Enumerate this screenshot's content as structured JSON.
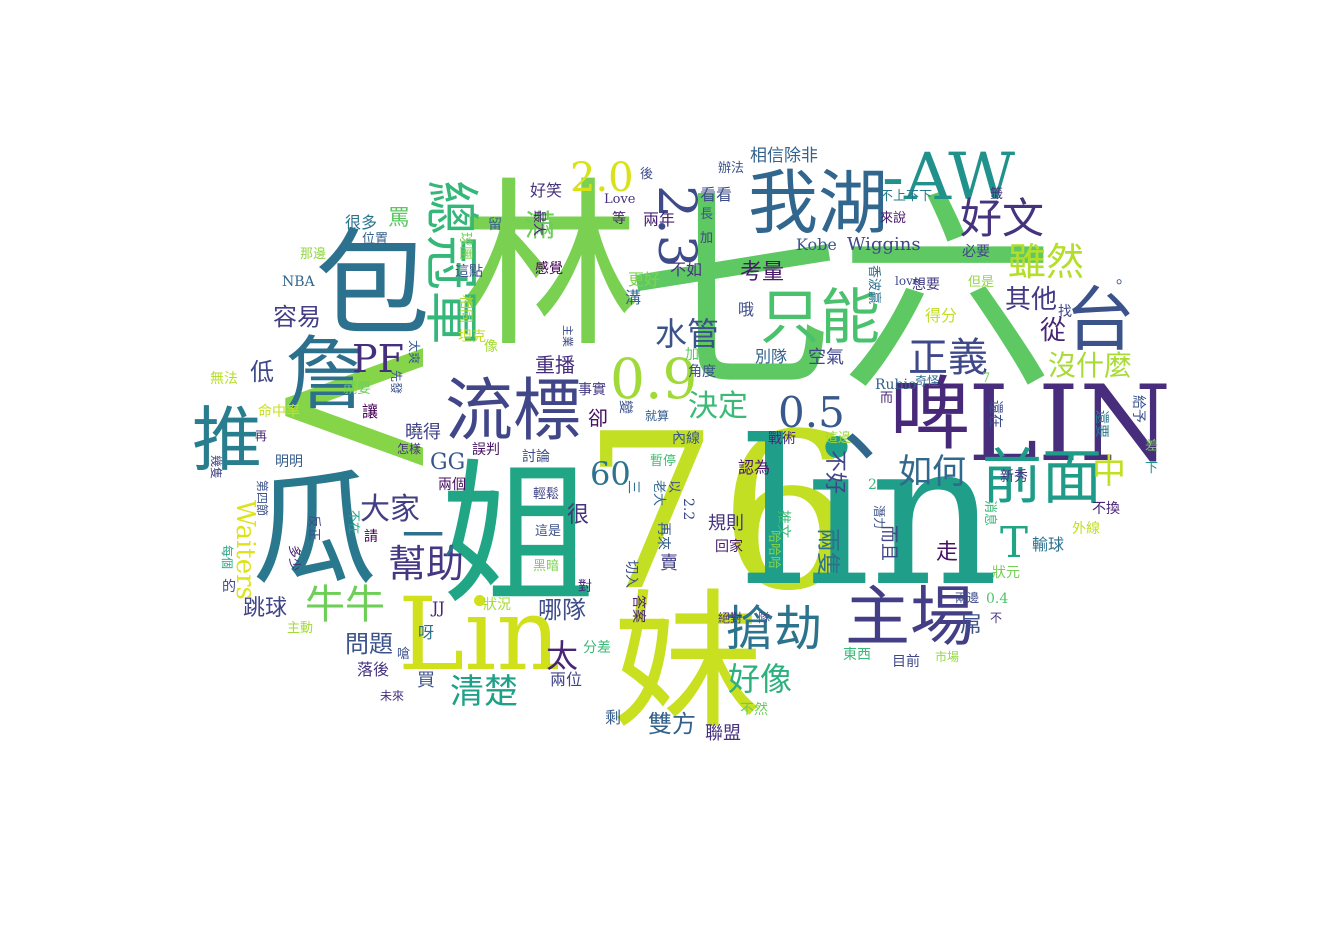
{
  "words": [
    {
      "text": "林",
      "color": "#7ad151"
    },
    {
      "text": "七六",
      "color": "#5ec962"
    },
    {
      "text": "76",
      "color": "#c2df23"
    },
    {
      "text": "lin",
      "color": "#1f9e89"
    },
    {
      "text": "姐",
      "color": "#21a685"
    },
    {
      "text": "妹",
      "color": "#c8e020"
    },
    {
      "text": "<",
      "color": "#86d549"
    },
    {
      "text": "Lin",
      "color": "#d0e11c"
    },
    {
      "text": "LIN",
      "color": "#472d7b"
    },
    {
      "text": "包",
      "color": "#2c728e"
    },
    {
      "text": "瓜",
      "color": "#2a788e"
    },
    {
      "text": "我湖",
      "color": "#31668e"
    },
    {
      "text": "-AW",
      "color": "#21918c"
    },
    {
      "text": "啤",
      "color": "#482878"
    },
    {
      "text": "台",
      "color": "#3b528b"
    },
    {
      "text": "詹",
      "color": "#2d708e"
    },
    {
      "text": "推",
      "color": "#287d8e"
    },
    {
      "text": "流標",
      "color": "#404688"
    },
    {
      "text": "只能",
      "color": "#4ac16d"
    },
    {
      "text": "總冠軍",
      "color": "#35b779"
    },
    {
      "text": "2.3",
      "color": "#3e4a89"
    },
    {
      "text": "2.0",
      "color": "#d8e219"
    },
    {
      "text": "好文",
      "color": "#46337e"
    },
    {
      "text": "前面",
      "color": "#1e9c89"
    },
    {
      "text": "主場",
      "color": "#433e85"
    },
    {
      "text": "搶劫",
      "color": "#2c738e"
    },
    {
      "text": "牛牛",
      "color": "#6ece58"
    },
    {
      "text": "幫助",
      "color": "#453781"
    },
    {
      "text": "0.9",
      "color": "#a0da39"
    },
    {
      "text": "0.5",
      "color": "#38598c"
    },
    {
      "text": "正義",
      "color": "#3f4889"
    },
    {
      "text": "雖然",
      "color": "#b5de2b"
    },
    {
      "text": "其他",
      "color": "#443983"
    },
    {
      "text": "從",
      "color": "#482475"
    },
    {
      "text": "沒什麼",
      "color": "#a8db34"
    },
    {
      "text": "水管",
      "color": "#3b528b"
    },
    {
      "text": "PF",
      "color": "#46307e"
    },
    {
      "text": "如何",
      "color": "#31688e"
    },
    {
      "text": "決定",
      "color": "#3aba76"
    },
    {
      "text": "中",
      "color": "#c0df25"
    },
    {
      "text": "T",
      "color": "#21a585"
    },
    {
      "text": "一,",
      "color": "#2e6f8e"
    },
    {
      "text": "大家",
      "color": "#423f85"
    },
    {
      "text": "GG",
      "color": "#39568c"
    },
    {
      "text": "60",
      "color": "#2c738e"
    },
    {
      "text": "好像",
      "color": "#2cb17e"
    },
    {
      "text": "清楚",
      "color": "#1fa187"
    },
    {
      "text": "雙方",
      "color": "#33628d"
    },
    {
      "text": "聯盟",
      "color": "#46327e"
    },
    {
      "text": "太",
      "color": "#482576"
    },
    {
      "text": "哪隊",
      "color": "#3e4c8a"
    },
    {
      "text": "問題",
      "color": "#3b528b"
    },
    {
      "text": "跳球",
      "color": "#414487"
    },
    {
      "text": "Waiters",
      "color": "#dde318"
    },
    {
      "text": "容易",
      "color": "#433e85"
    },
    {
      "text": "低",
      "color": "#3e4a89"
    },
    {
      "text": "考量",
      "color": "#48186a"
    },
    {
      "text": "Kobe",
      "color": "#3a548c"
    },
    {
      "text": "Wiggins",
      "color": "#3f4788"
    },
    {
      "text": "相信除非",
      "color": "#33638d"
    },
    {
      "text": "看看",
      "color": "#3d4d8a"
    },
    {
      "text": "兩年",
      "color": "#482173"
    },
    {
      "text": "不如",
      "color": "#463480"
    },
    {
      "text": "更好",
      "color": "#7fd34e"
    },
    {
      "text": "好笑",
      "color": "#46337f"
    },
    {
      "text": "滿",
      "color": "#6ccd5a"
    },
    {
      "text": "很多",
      "color": "#2b748e"
    },
    {
      "text": "罵",
      "color": "#5cc863"
    },
    {
      "text": "NBA",
      "color": "#31678e"
    },
    {
      "text": "感覺",
      "color": "#440154"
    },
    {
      "text": "這點",
      "color": "#3d4e8a"
    },
    {
      "text": "重播",
      "color": "#472e7c"
    },
    {
      "text": "事實",
      "color": "#443a83"
    },
    {
      "text": "空氣",
      "color": "#3f4788"
    },
    {
      "text": "別隊",
      "color": "#34608d"
    },
    {
      "text": "加上",
      "color": "#5cc863"
    },
    {
      "text": "角度",
      "color": "#3b528b"
    },
    {
      "text": "得分",
      "color": "#c2df23"
    },
    {
      "text": "想要",
      "color": "#433d84"
    },
    {
      "text": "但是",
      "color": "#93d741"
    },
    {
      "text": "必要",
      "color": "#404588"
    },
    {
      "text": "來說",
      "color": "#48186a"
    },
    {
      "text": "不上不下",
      "color": "#29798e"
    },
    {
      "text": "Rubio",
      "color": "#33628d"
    },
    {
      "text": "奇怪",
      "color": "#2e6d8e"
    },
    {
      "text": "戰術",
      "color": "#482979"
    },
    {
      "text": "這邊",
      "color": "#9dd93b"
    },
    {
      "text": "內線",
      "color": "#375a8c"
    },
    {
      "text": "就算",
      "color": "#365d8d"
    },
    {
      "text": "卻",
      "color": "#471164"
    },
    {
      "text": "曉得",
      "color": "#414287"
    },
    {
      "text": "誤判",
      "color": "#471365"
    },
    {
      "text": "討論",
      "color": "#3d4e8a"
    },
    {
      "text": "兩個",
      "color": "#460b5e"
    },
    {
      "text": "暫停",
      "color": "#40bd72"
    },
    {
      "text": "認為",
      "color": "#481668"
    },
    {
      "text": "規則",
      "color": "#46337f"
    },
    {
      "text": "回家",
      "color": "#48196b"
    },
    {
      "text": "新秀",
      "color": "#453781"
    },
    {
      "text": "輸球",
      "color": "#2d708e"
    },
    {
      "text": "不換",
      "color": "#482576"
    },
    {
      "text": "狀元",
      "color": "#75d054"
    },
    {
      "text": "0.4",
      "color": "#50c46a"
    },
    {
      "text": "目前",
      "color": "#3f4889"
    },
    {
      "text": "東西",
      "color": "#38b977"
    },
    {
      "text": "市場",
      "color": "#95d840"
    },
    {
      "text": "賣",
      "color": "#423f85"
    },
    {
      "text": "走",
      "color": "#471063"
    },
    {
      "text": "絕對",
      "color": "#46327e"
    },
    {
      "text": "隊",
      "color": "#3b528b"
    },
    {
      "text": "對",
      "color": "#482878"
    },
    {
      "text": "分差",
      "color": "#3aba76"
    },
    {
      "text": "兩位",
      "color": "#414487"
    },
    {
      "text": "剩",
      "color": "#365d8d"
    },
    {
      "text": "不然",
      "color": "#6ccd5a"
    },
    {
      "text": "落後",
      "color": "#463480"
    },
    {
      "text": "買",
      "color": "#3b528b"
    },
    {
      "text": "狀況",
      "color": "#a5db36"
    },
    {
      "text": "主動",
      "color": "#a2da37"
    },
    {
      "text": "呀",
      "color": "#2d708e"
    },
    {
      "text": "JJ",
      "color": "#482677"
    },
    {
      "text": "這是",
      "color": "#3b528b"
    },
    {
      "text": "黑暗",
      "color": "#7ad151"
    },
    {
      "text": "請",
      "color": "#440154"
    },
    {
      "text": "的",
      "color": "#3e4989"
    },
    {
      "text": "命中率",
      "color": "#c5e021"
    },
    {
      "text": "就要",
      "color": "#6ece58"
    },
    {
      "text": "明明",
      "color": "#365c8d"
    },
    {
      "text": "無法",
      "color": "#b8de29"
    },
    {
      "text": "那邊",
      "color": "#93d741"
    },
    {
      "text": "位置",
      "color": "#34608d"
    },
    {
      "text": "辦法",
      "color": "#3b528b"
    },
    {
      "text": "等",
      "color": "#482374"
    },
    {
      "text": "哦",
      "color": "#3d4e8a"
    },
    {
      "text": "溝",
      "color": "#32648e"
    },
    {
      "text": "Love",
      "color": "#46307e"
    },
    {
      "text": "love",
      "color": "#3e4989"
    },
    {
      "text": "找",
      "color": "#3f4788"
    },
    {
      "text": "。",
      "color": "#3b528b"
    },
    {
      "text": "差",
      "color": "#79d151"
    },
    {
      "text": "下",
      "color": "#20928c"
    },
    {
      "text": "外線",
      "color": "#c0df25"
    },
    {
      "text": "還要",
      "color": "#2a788e"
    },
    {
      "text": "給予",
      "color": "#3b528b"
    },
    {
      "text": "還在",
      "color": "#3e4c8a"
    },
    {
      "text": "而且",
      "color": "#414487"
    },
    {
      "text": "兩隻",
      "color": "#2d718e"
    },
    {
      "text": "不好",
      "color": "#404588"
    },
    {
      "text": "2",
      "color": "#35b779"
    },
    {
      "text": "2.2",
      "color": "#3e4a89"
    },
    {
      "text": "推文",
      "color": "#3bbb75"
    },
    {
      "text": "很",
      "color": "#46327e"
    },
    {
      "text": "切入",
      "color": "#3b528b"
    },
    {
      "text": "答案",
      "color": "#482475"
    },
    {
      "text": "再來",
      "color": "#365c8d"
    },
    {
      "text": "輕鬆",
      "color": "#404588"
    },
    {
      "text": "變",
      "color": "#3b528b"
    },
    {
      "text": "坦克",
      "color": "#c2df23"
    },
    {
      "text": "像",
      "color": "#a5db36"
    },
    {
      "text": "相同",
      "color": "#a2da37"
    },
    {
      "text": "球團",
      "color": "#7ad151"
    },
    {
      "text": "留",
      "color": "#365c8d"
    },
    {
      "text": "最大",
      "color": "#482878"
    },
    {
      "text": "加",
      "color": "#414487"
    },
    {
      "text": "長",
      "color": "#3b528b"
    },
    {
      "text": "後",
      "color": "#3e4c8a"
    },
    {
      "text": "籤",
      "color": "#46327e"
    },
    {
      "text": "嗆",
      "color": "#3b528b"
    },
    {
      "text": "未來",
      "color": "#46307e"
    },
    {
      "text": "多少",
      "color": "#482475"
    },
    {
      "text": "反正",
      "color": "#3e4c8a"
    },
    {
      "text": "不在",
      "color": "#1fa187"
    },
    {
      "text": "每個",
      "color": "#22a785"
    },
    {
      "text": "第四節",
      "color": "#3b528b"
    },
    {
      "text": "幾隻",
      "color": "#414487"
    },
    {
      "text": "怎樣",
      "color": "#46327e"
    },
    {
      "text": "再",
      "color": "#482475"
    },
    {
      "text": "讓",
      "color": "#440154"
    },
    {
      "text": "太爽",
      "color": "#365c8d"
    },
    {
      "text": "先發",
      "color": "#3b528b"
    },
    {
      "text": "主業",
      "color": "#3e4c8a"
    },
    {
      "text": "消息",
      "color": "#3aba76"
    },
    {
      "text": "香波贏",
      "color": "#2c728e"
    },
    {
      "text": "潛力",
      "color": "#3b528b"
    },
    {
      "text": "哈哈哈",
      "color": "#84d44b"
    },
    {
      "text": "老大",
      "color": "#31688e"
    },
    {
      "text": "以",
      "color": "#3e4c8a"
    },
    {
      "text": "三",
      "color": "#2c728e"
    },
    {
      "text": "兩邊",
      "color": "#3e4c8a"
    },
    {
      "text": "不",
      "color": "#46327e"
    },
    {
      "text": "而",
      "color": "#482475"
    },
    {
      "text": "7",
      "color": "#6ccd5a"
    },
    {
      "text": "屌",
      "color": "#3b528b"
    },
    {
      "text": "、",
      "color": "#31688e"
    }
  ]
}
